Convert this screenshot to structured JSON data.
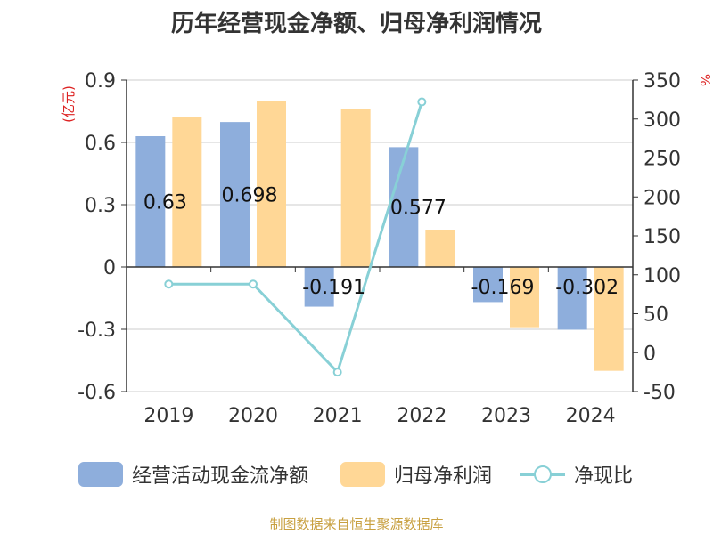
{
  "title": "历年经营现金净额、归母净利润情况",
  "footer": "制图数据来自恒生聚源数据库",
  "colors": {
    "cash": "#8eaedc",
    "profit": "#ffd796",
    "ratio": "#88d0d6",
    "grid": "#cccccc",
    "axis": "#333333",
    "unit": "#dd2222"
  },
  "chart_data": {
    "type": "bar",
    "title": "历年经营现金净额、归母净利润情况",
    "categories": [
      "2019",
      "2020",
      "2021",
      "2022",
      "2023",
      "2024"
    ],
    "y_left": {
      "label": "(亿元)",
      "ylim": [
        -0.6,
        0.9
      ],
      "ticks": [
        "0.9",
        "0.6",
        "0.3",
        "0",
        "-0.3",
        "-0.6"
      ]
    },
    "y_right": {
      "label": "%",
      "ylim": [
        -50,
        350
      ],
      "ticks": [
        "350",
        "300",
        "250",
        "200",
        "150",
        "100",
        "50",
        "0",
        "-50"
      ]
    },
    "series": [
      {
        "name": "经营活动现金流净额",
        "kind": "bar",
        "axis": "left",
        "values": [
          0.63,
          0.698,
          -0.191,
          0.577,
          -0.169,
          -0.302
        ],
        "labels": [
          "0.63",
          "0.698",
          "-0.191",
          "0.577",
          "-0.169",
          "-0.302"
        ]
      },
      {
        "name": "归母净利润",
        "kind": "bar",
        "axis": "left",
        "values": [
          0.72,
          0.8,
          0.76,
          0.18,
          -0.29,
          -0.5
        ]
      },
      {
        "name": "净现比",
        "kind": "line",
        "axis": "right",
        "values": [
          88,
          88,
          -25,
          322,
          null,
          null
        ]
      }
    ],
    "grid": true,
    "legend": "bottom"
  }
}
